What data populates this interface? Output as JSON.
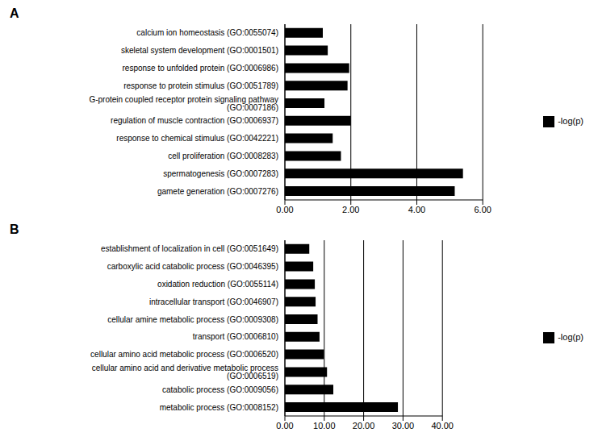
{
  "chart_data": [
    {
      "type": "bar",
      "title": "A",
      "orientation": "horizontal",
      "grid": true,
      "legend": "right",
      "categories": [
        "calcium ion homeostasis (GO:0055074)",
        "skeletal system development (GO:0001501)",
        "response to unfolded protein (GO:0006986)",
        "response to protein stimulus (GO:0051789)",
        "G-protein coupled receptor protein signaling pathway (GO:0007186)",
        "regulation of muscle contraction (GO:0006937)",
        "response to chemical stimulus (GO:0042221)",
        "cell proliferation (GO:0008283)",
        "spermatogenesis (GO:0007283)",
        "gamete generation (GO:0007276)"
      ],
      "series": [
        {
          "name": "-log(p)",
          "color": "#000000",
          "values": [
            1.15,
            1.3,
            1.95,
            1.9,
            1.2,
            2.0,
            1.45,
            1.7,
            5.4,
            5.15
          ]
        }
      ],
      "xlim": [
        0,
        6
      ],
      "xticks": [
        {
          "value": 0,
          "label": "0.00"
        },
        {
          "value": 2,
          "label": "2.00"
        },
        {
          "value": 4,
          "label": "4.00"
        },
        {
          "value": 6,
          "label": "6.00"
        }
      ]
    },
    {
      "type": "bar",
      "title": "B",
      "orientation": "horizontal",
      "grid": true,
      "legend": "right",
      "categories": [
        "establishment of localization in cell (GO:0051649)",
        "carboxylic acid catabolic process (GO:0046395)",
        "oxidation reduction (GO:0055114)",
        "intracellular transport (GO:0046907)",
        "cellular amine metabolic process (GO:0009308)",
        "transport (GO:0006810)",
        "cellular amino acid metabolic process (GO:0006520)",
        "cellular amino acid and derivative metabolic process (GO:0006519)",
        "catabolic process (GO:0009056)",
        "metabolic process (GO:0008152)"
      ],
      "series": [
        {
          "name": "-log(p)",
          "color": "#000000",
          "values": [
            6.2,
            7.2,
            7.6,
            7.8,
            8.3,
            8.8,
            9.9,
            10.7,
            12.3,
            28.7
          ]
        }
      ],
      "xlim": [
        0,
        40
      ],
      "xticks": [
        {
          "value": 0,
          "label": "0.00"
        },
        {
          "value": 10,
          "label": "10.00"
        },
        {
          "value": 20,
          "label": "20.00"
        },
        {
          "value": 30,
          "label": "30.00"
        },
        {
          "value": 40,
          "label": "40.00"
        }
      ]
    }
  ]
}
